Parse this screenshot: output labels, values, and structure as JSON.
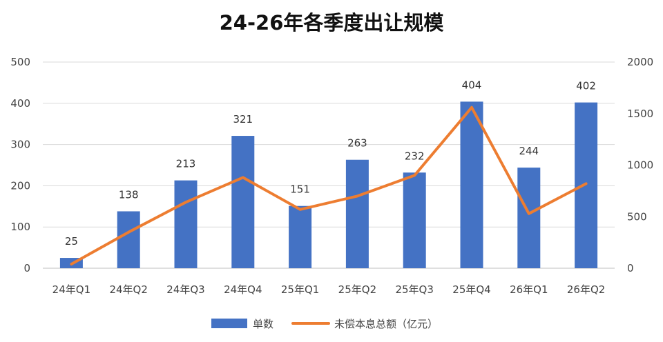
{
  "chart_data": {
    "type": "bar",
    "title": "24-26年各季度出让规模",
    "categories": [
      "24年Q1",
      "24年Q2",
      "24年Q3",
      "24年Q4",
      "25年Q1",
      "25年Q2",
      "25年Q3",
      "25年Q4",
      "26年Q1",
      "26年Q2"
    ],
    "series": [
      {
        "name": "单数",
        "type": "bar",
        "axis": "left",
        "color": "#4472C4",
        "values": [
          25,
          138,
          213,
          321,
          151,
          263,
          232,
          404,
          244,
          402
        ]
      },
      {
        "name": "未偿本息总额（亿元）",
        "type": "line",
        "axis": "right",
        "color": "#ED7D31",
        "values": [
          40,
          350,
          640,
          880,
          570,
          700,
          900,
          1560,
          530,
          820
        ]
      }
    ],
    "y_left": {
      "min": 0,
      "max": 500,
      "ticks": [
        0,
        100,
        200,
        300,
        400,
        500
      ]
    },
    "y_right": {
      "min": 0,
      "max": 2000,
      "ticks": [
        0,
        500,
        1000,
        1500,
        2000
      ]
    },
    "grid": true,
    "legend_position": "bottom"
  }
}
